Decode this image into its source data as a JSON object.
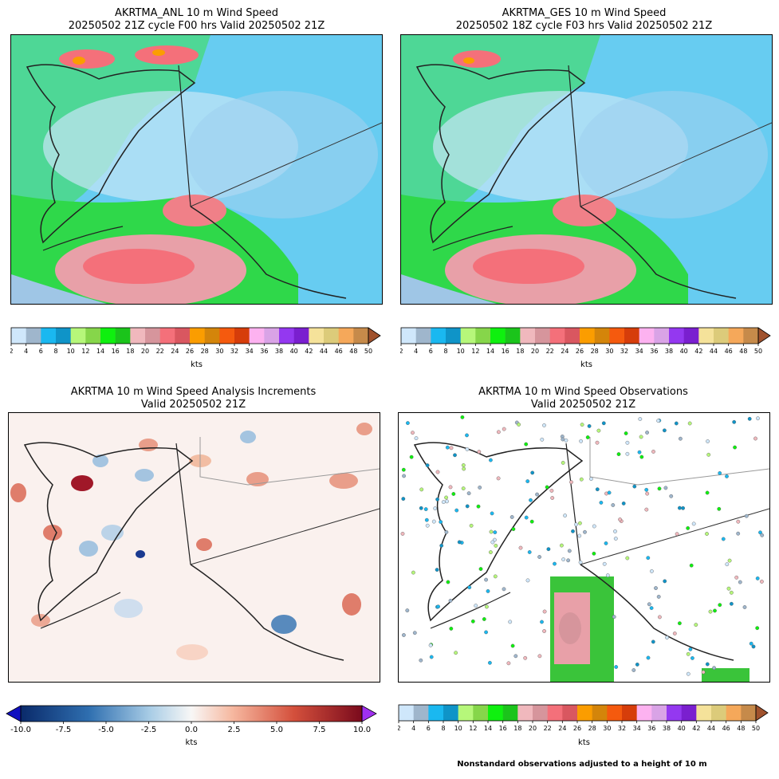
{
  "panels": [
    {
      "title1": "AKRTMA_ANL 10 m Wind Speed",
      "title2": "20250502 21Z cycle F00 hrs Valid 20250502 21Z"
    },
    {
      "title1": "AKRTMA_GES 10 m Wind Speed",
      "title2": "20250502 18Z cycle F03 hrs Valid 20250502 21Z"
    },
    {
      "title1": "AKRTMA 10 m Wind Speed Analysis Increments",
      "title2": "Valid 20250502 21Z"
    },
    {
      "title1": "AKRTMA 10 m Wind Speed Observations",
      "title2": "Valid 20250502 21Z"
    }
  ],
  "colorbar_speed": {
    "unit": "kts",
    "ticks": [
      "2",
      "4",
      "6",
      "8",
      "10",
      "12",
      "14",
      "16",
      "18",
      "20",
      "22",
      "24",
      "26",
      "28",
      "30",
      "32",
      "34",
      "36",
      "38",
      "40",
      "42",
      "44",
      "46",
      "48",
      "50"
    ],
    "colors": [
      "#cfe7fb",
      "#9fb6cc",
      "#1ab8f0",
      "#0f94c8",
      "#b6f77a",
      "#86d64a",
      "#0ff00f",
      "#1bc41b",
      "#f0b8bd",
      "#d6959c",
      "#f4707a",
      "#d95760",
      "#fb9d00",
      "#d4850a",
      "#f55a0e",
      "#d63d0a",
      "#fdb2f0",
      "#d9a3e6",
      "#9438f0",
      "#7a1fcf",
      "#f5e29a",
      "#dccb7a",
      "#f5a85a",
      "#c68a4a",
      "#a0522d"
    ]
  },
  "colorbar_incr": {
    "unit": "kts",
    "ticks": [
      "-10.0",
      "-7.5",
      "-5.0",
      "-2.5",
      "0.0",
      "2.5",
      "5.0",
      "7.5",
      "10.0"
    ],
    "min_color": "#1010c0",
    "max_color": "#a030f0"
  },
  "footnote": "Nonstandard observations adjusted to a height of 10 m",
  "chart_data": [
    {
      "type": "heatmap",
      "title": "AKRTMA_ANL 10 m Wind Speed",
      "subtitle": "20250502 21Z cycle F00 hrs Valid 20250502 21Z",
      "colorbar_label": "kts",
      "vrange": [
        2,
        50
      ]
    },
    {
      "type": "heatmap",
      "title": "AKRTMA_GES 10 m Wind Speed",
      "subtitle": "20250502 18Z cycle F03 hrs Valid 20250502 21Z",
      "colorbar_label": "kts",
      "vrange": [
        2,
        50
      ]
    },
    {
      "type": "heatmap",
      "title": "AKRTMA 10 m Wind Speed Analysis Increments",
      "subtitle": "Valid 20250502 21Z",
      "colorbar_label": "kts",
      "vrange": [
        -10,
        10
      ]
    },
    {
      "type": "scatter",
      "title": "AKRTMA 10 m Wind Speed Observations",
      "subtitle": "Valid 20250502 21Z",
      "colorbar_label": "kts",
      "vrange": [
        2,
        50
      ]
    }
  ]
}
